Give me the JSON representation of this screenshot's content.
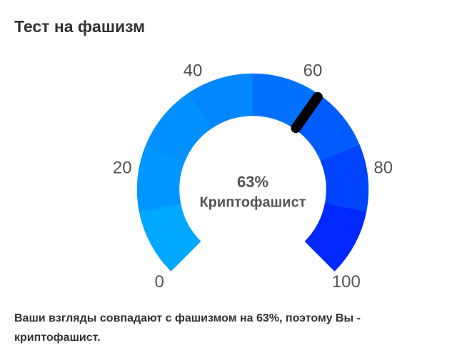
{
  "chart_data": {
    "type": "gauge",
    "title": "Тест на фашизм",
    "value": 63,
    "value_label": "63%",
    "category": "Криптофашист",
    "range": [
      0,
      100
    ],
    "ticks": [
      0,
      20,
      40,
      60,
      80,
      100
    ],
    "bands": [
      {
        "from": 0,
        "to": 12.5,
        "color": "#00a8ff"
      },
      {
        "from": 12.5,
        "to": 25,
        "color": "#0096ff"
      },
      {
        "from": 25,
        "to": 37.5,
        "color": "#0090ff"
      },
      {
        "from": 37.5,
        "to": 50,
        "color": "#0086ff"
      },
      {
        "from": 50,
        "to": 62.5,
        "color": "#0070ff"
      },
      {
        "from": 62.5,
        "to": 75,
        "color": "#005cff"
      },
      {
        "from": 75,
        "to": 87.5,
        "color": "#0044ff"
      },
      {
        "from": 87.5,
        "to": 100,
        "color": "#0028ff"
      }
    ],
    "needle_color": "#000000",
    "footer": "Ваши взгляды совпадают с фашизмом на 63%, поэтому Вы - криптофашист."
  }
}
